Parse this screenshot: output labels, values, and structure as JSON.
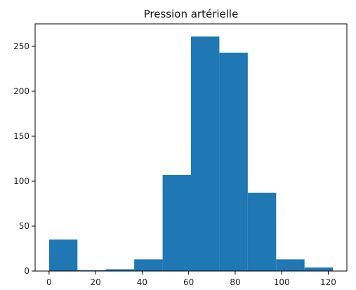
{
  "chart_data": {
    "type": "bar",
    "title": "Pression artérielle",
    "xlabel": "",
    "ylabel": "",
    "xlim": [
      -6,
      128
    ],
    "ylim": [
      0,
      275
    ],
    "grid": false,
    "bins": [
      {
        "start": 0.0,
        "end": 12.2,
        "count": 35
      },
      {
        "start": 12.2,
        "end": 24.4,
        "count": 1
      },
      {
        "start": 24.4,
        "end": 36.6,
        "count": 2
      },
      {
        "start": 36.6,
        "end": 48.8,
        "count": 13
      },
      {
        "start": 48.8,
        "end": 61.0,
        "count": 107
      },
      {
        "start": 61.0,
        "end": 73.2,
        "count": 261
      },
      {
        "start": 73.2,
        "end": 85.4,
        "count": 243
      },
      {
        "start": 85.4,
        "end": 97.6,
        "count": 87
      },
      {
        "start": 97.6,
        "end": 109.8,
        "count": 13
      },
      {
        "start": 109.8,
        "end": 122.0,
        "count": 4
      }
    ],
    "x_ticks": [
      0,
      20,
      40,
      60,
      80,
      100,
      120
    ],
    "y_ticks": [
      0,
      50,
      100,
      150,
      200,
      250
    ],
    "bar_color": "#1f77b4"
  }
}
